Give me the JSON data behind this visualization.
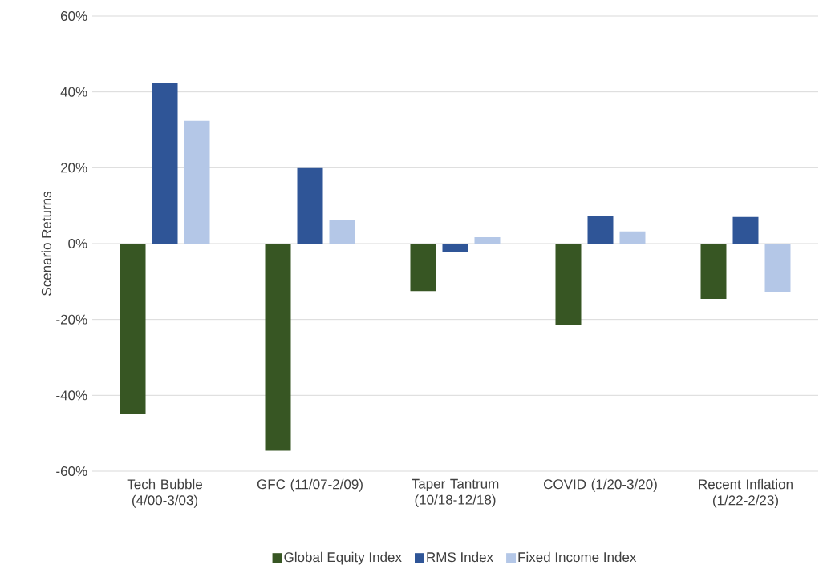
{
  "chart_data": {
    "type": "bar",
    "ylabel": "Scenario Returns",
    "categories": [
      "Tech Bubble (4/00-3/03)",
      "GFC (11/07-2/09)",
      "Taper Tantrum (10/18-12/18)",
      "COVID (1/20-3/20)",
      "Recent Inflation (1/22-2/23)"
    ],
    "series": [
      {
        "name": "Global Equity Index",
        "color": "#375623",
        "values": [
          -45,
          -54.6,
          -12.5,
          -21.4,
          -14.6
        ]
      },
      {
        "name": "RMS Index",
        "color": "#2f5597",
        "values": [
          42.3,
          19.9,
          -2.3,
          7.2,
          7.0
        ]
      },
      {
        "name": "Fixed Income Index",
        "color": "#b4c7e7",
        "values": [
          32.4,
          6.1,
          1.7,
          3.2,
          -12.7
        ]
      }
    ],
    "ylim": [
      -60,
      60
    ],
    "yticks": [
      {
        "value": -60,
        "label": "-60%"
      },
      {
        "value": -40,
        "label": "-40%"
      },
      {
        "value": -20,
        "label": "-20%"
      },
      {
        "value": 0,
        "label": "0%"
      },
      {
        "value": 20,
        "label": "20%"
      },
      {
        "value": 40,
        "label": "40%"
      },
      {
        "value": 60,
        "label": "60%"
      }
    ],
    "grid": "y",
    "legend": "bottom"
  }
}
